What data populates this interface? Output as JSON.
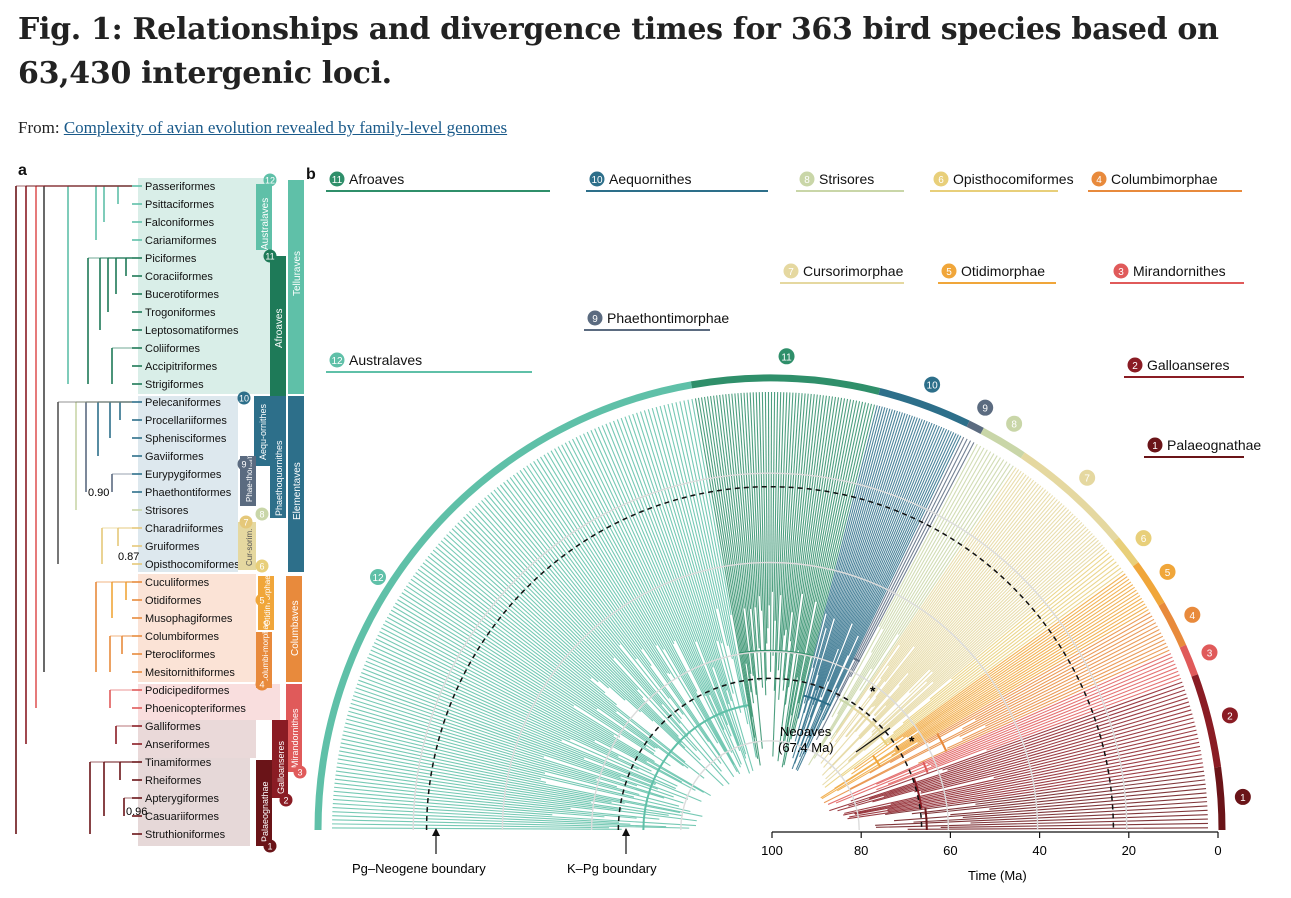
{
  "header": {
    "title": "Fig. 1: Relationships and divergence times for 363 bird species based on 63,430 intergenic loci.",
    "from_label": "From:",
    "source_link": "Complexity of avian evolution revealed by family-level genomes"
  },
  "panel_a": {
    "letter": "a",
    "orders": [
      "Passeriformes",
      "Psittaciformes",
      "Falconiformes",
      "Cariamiformes",
      "Piciformes",
      "Coraciiformes",
      "Bucerotiformes",
      "Trogoniformes",
      "Leptosomatiformes",
      "Coliiformes",
      "Accipitriformes",
      "Strigiformes",
      "Pelecaniformes",
      "Procellariiformes",
      "Sphenisciformes",
      "Gaviiformes",
      "Eurypygiformes",
      "Phaethontiformes",
      "Strisores",
      "Charadriiformes",
      "Gruiformes",
      "Opisthocomiformes",
      "Cuculiformes",
      "Otidiformes",
      "Musophagiformes",
      "Columbiformes",
      "Pterocliformes",
      "Mesitornithiformes",
      "Podicipediformes",
      "Phoenicopteriformes",
      "Galliformes",
      "Anseriformes",
      "Tinamiformes",
      "Rheiformes",
      "Apterygiformes",
      "Casuariiformes",
      "Struthioniformes"
    ],
    "support_values": [
      "0.90",
      "0.87",
      "0.96"
    ],
    "clade_boxes": {
      "australaves": "Australaves",
      "afroaves": "Afroaves",
      "telluraves": "Telluraves",
      "aequornithes": "Aequ-\nornithes",
      "phaethontim": "Phae-\nthontim.",
      "cursorim": "Cur-\nsorim.",
      "phaethoquornithes": "Phaethoquornithes",
      "elementaves": "Elementaves",
      "otidimorphae": "Otidim-\norphae",
      "columbimorphae": "Columbi-\nmorphae",
      "columbaves": "Columbaves",
      "mirandornithes": "Mirandornithes",
      "galloanseres": "Galloanseres",
      "palaeognathae": "Palaeognathae"
    },
    "clade_numbers": [
      "12",
      "11",
      "10",
      "9",
      "8",
      "7",
      "6",
      "5",
      "4",
      "3",
      "2",
      "1"
    ]
  },
  "panel_b": {
    "letter": "b",
    "clade_legend": [
      {
        "num": "11",
        "name": "Afroaves",
        "color": "#2f8f6a"
      },
      {
        "num": "10",
        "name": "Aequornithes",
        "color": "#2d6f8a"
      },
      {
        "num": "8",
        "name": "Strisores",
        "color": "#c9d6a8"
      },
      {
        "num": "6",
        "name": "Opisthocomiformes",
        "color": "#e8cf7a"
      },
      {
        "num": "4",
        "name": "Columbimorphae",
        "color": "#e88a3c"
      },
      {
        "num": "7",
        "name": "Cursorimorphae",
        "color": "#e5d8a0"
      },
      {
        "num": "5",
        "name": "Otidimorphae",
        "color": "#f0a63a"
      },
      {
        "num": "3",
        "name": "Mirandornithes",
        "color": "#e05a5a"
      },
      {
        "num": "9",
        "name": "Phaethontimorphae",
        "color": "#5b6b80"
      },
      {
        "num": "2",
        "name": "Galloanseres",
        "color": "#8a1c24"
      },
      {
        "num": "12",
        "name": "Australaves",
        "color": "#5fc0a8"
      },
      {
        "num": "1",
        "name": "Palaeognathae",
        "color": "#6a1418"
      }
    ],
    "neoaves_label": "Neoaves",
    "neoaves_age": "(67.4 Ma)",
    "boundary_pg_neogene": "Pg–Neogene boundary",
    "boundary_kpg": "K–Pg boundary",
    "axis_label": "Time (Ma)",
    "axis_ticks": [
      "100",
      "80",
      "60",
      "40",
      "20",
      "0"
    ]
  },
  "colors": {
    "telluraves": "#2f8f6a",
    "australaves_light": "#5fc0a8",
    "aequornithes": "#2d6f8a",
    "columbaves": "#e88a3c",
    "mirandornithes": "#e05a5a",
    "galloanseres": "#8a1c24",
    "palaeognathae": "#6a1418"
  }
}
